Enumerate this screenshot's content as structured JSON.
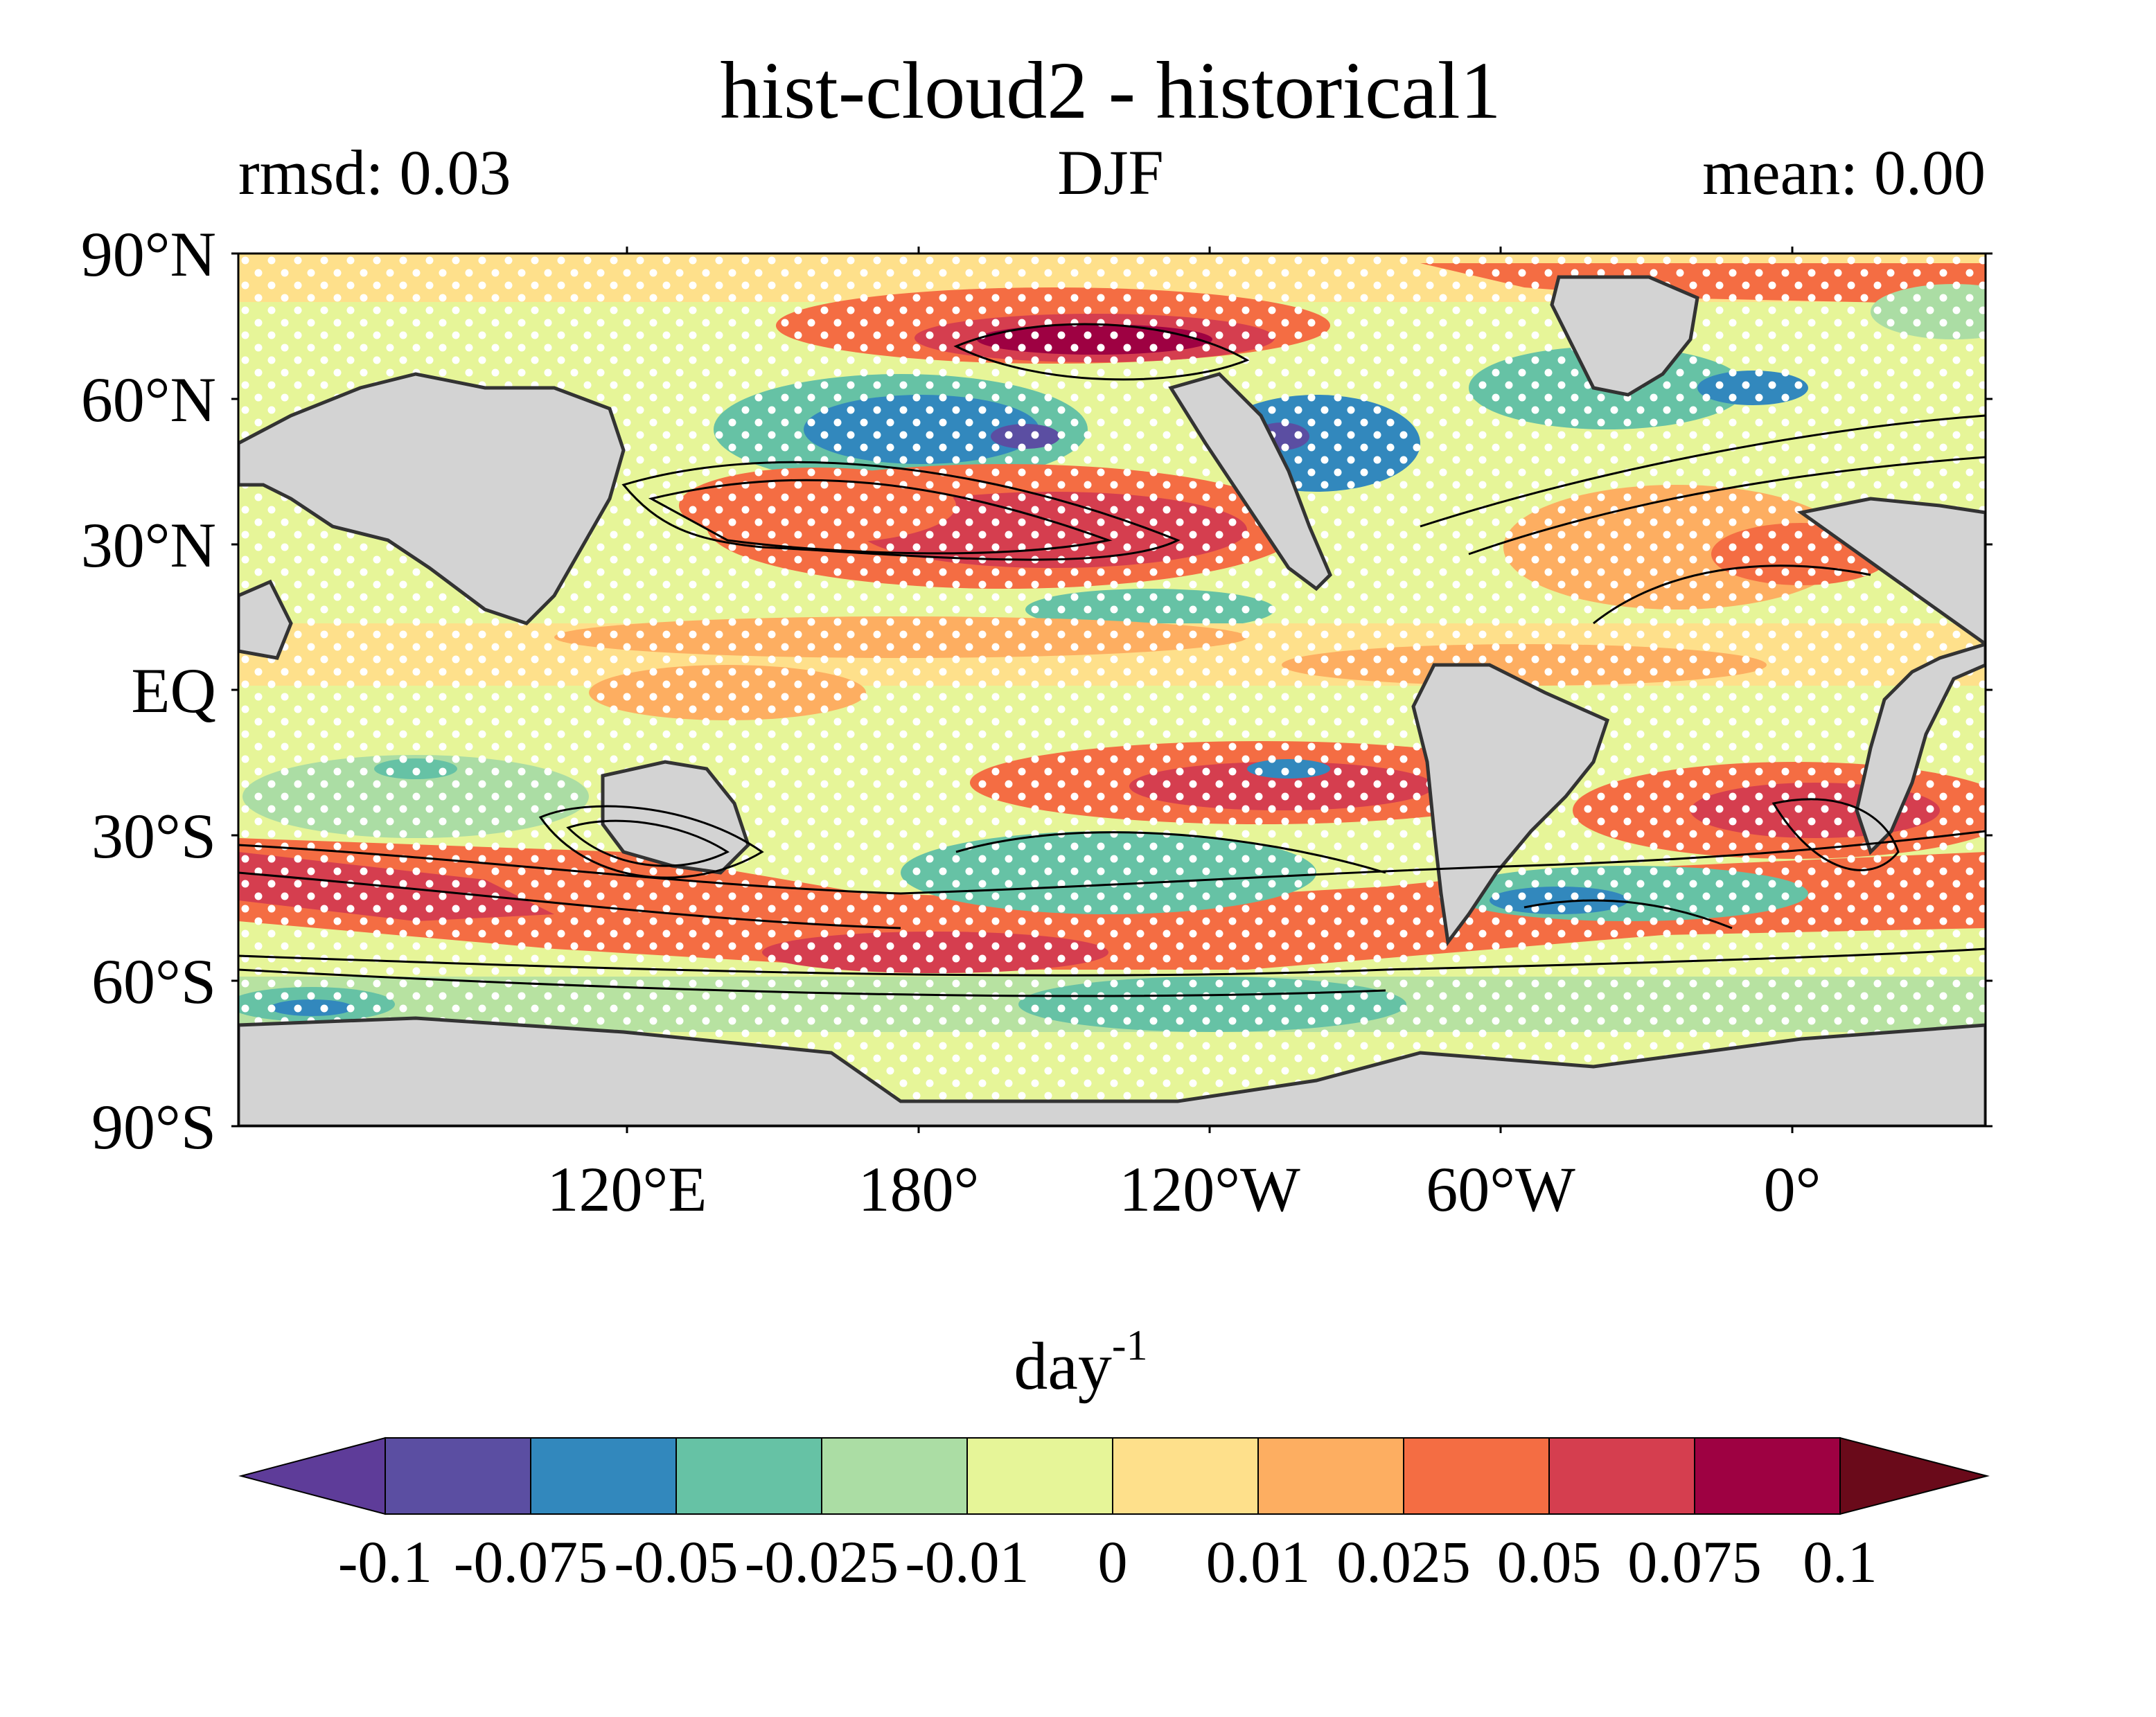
{
  "title": "hist-cloud2 - historical1",
  "left_label": "rmsd: 0.03",
  "center_label": "DJF",
  "right_label": "mean: 0.00",
  "lat_ticks": [
    "90°N",
    "60°N",
    "30°N",
    "EQ",
    "30°S",
    "60°S",
    "90°S"
  ],
  "lon_ticks": [
    "120°E",
    "180°",
    "120°W",
    "60°W",
    "0°"
  ],
  "colorbar": {
    "unit_base": "day",
    "unit_exponent": "-1",
    "tick_labels": [
      "-0.1",
      "-0.075",
      "-0.05",
      "-0.025",
      "-0.01",
      "0",
      "0.01",
      "0.025",
      "0.05",
      "0.075",
      "0.1"
    ],
    "colors": [
      "#5e3c99",
      "#5b4ea2",
      "#3288bd",
      "#66c2a5",
      "#abdda4",
      "#e6f598",
      "#fee08b",
      "#fdae61",
      "#f46d43",
      "#d53e4f",
      "#9e0142",
      "#6a0a1a"
    ]
  },
  "land_color": "#d3d3d3"
}
